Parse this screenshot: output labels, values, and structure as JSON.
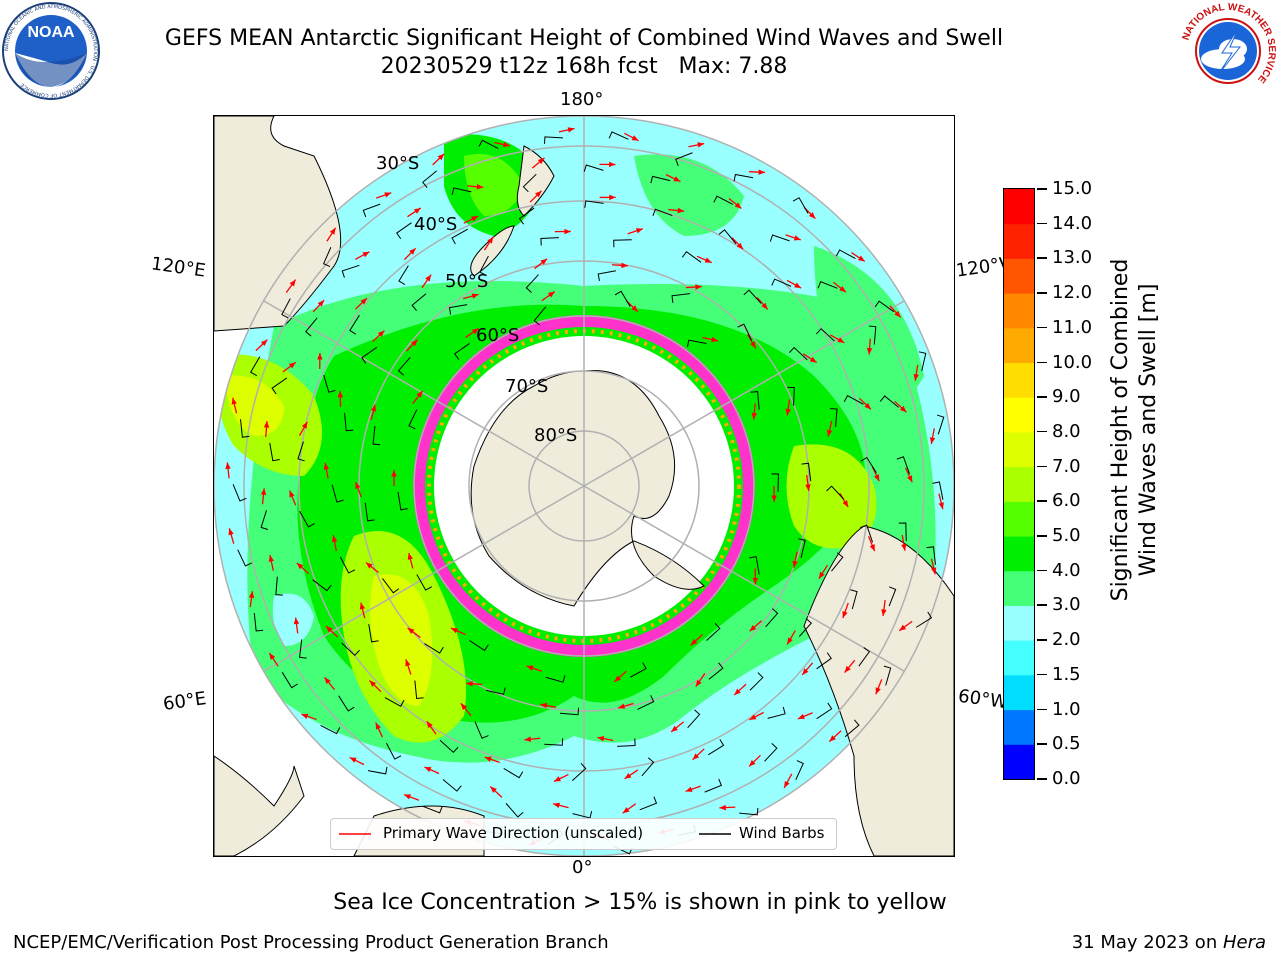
{
  "header": {
    "title_line1": "GEFS MEAN Antarctic Significant Height of Combined Wind Waves and Swell",
    "title_line2": "20230529 t12z 168h fcst   Max: 7.88"
  },
  "logos": {
    "noaa_text": "NOAA",
    "noaa_ring_text": "NATIONAL OCEANIC AND ATMOSPHERIC ADMINISTRATION · U.S. DEPARTMENT OF COMMERCE",
    "nws_ring_text": "NATIONAL WEATHER SERVICE"
  },
  "map": {
    "longitude_labels": {
      "top": "180°",
      "bottom": "0°",
      "upper_left": "120°E",
      "upper_right": "120°W",
      "lower_left": "60°E",
      "lower_right": "60°W"
    },
    "latitude_labels": [
      "30°S",
      "40°S",
      "50°S",
      "60°S",
      "70°S",
      "80°S"
    ]
  },
  "legend": {
    "primary_wave": "Primary Wave Direction (unscaled)",
    "wind_barbs": "Wind Barbs",
    "primary_wave_color": "#ff0000",
    "wind_barb_color": "#000000"
  },
  "colorbar": {
    "title_line1": "Significant Height of Combined",
    "title_line2": "Wind Waves and Swell [m]",
    "ticks": [
      "0.0",
      "0.5",
      "1.0",
      "1.5",
      "2.0",
      "3.0",
      "4.0",
      "5.0",
      "6.0",
      "7.0",
      "8.0",
      "9.0",
      "10.0",
      "11.0",
      "12.0",
      "13.0",
      "14.0",
      "15.0"
    ],
    "colors": [
      "#0000ff",
      "#0077ff",
      "#00ddff",
      "#44ffff",
      "#99ffff",
      "#44ff77",
      "#00ee00",
      "#55ff00",
      "#aaff00",
      "#ddff00",
      "#ffff00",
      "#ffdd00",
      "#ffaa00",
      "#ff8800",
      "#ff5500",
      "#ff2200",
      "#ff0000"
    ]
  },
  "caption": "Sea Ice Concentration > 15% is shown in pink to yellow",
  "footer": {
    "left": "NCEP/EMC/Verification Post Processing Product Generation Branch",
    "right_date": "31 May 2023 on ",
    "right_machine": "Hera"
  }
}
